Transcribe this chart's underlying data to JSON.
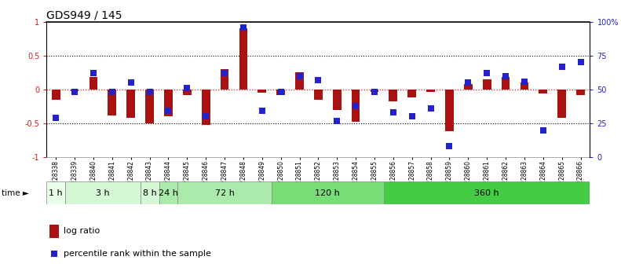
{
  "title": "GDS949 / 145",
  "samples": [
    "GSM228338",
    "GSM228339",
    "GSM228840",
    "GSM228841",
    "GSM228842",
    "GSM228843",
    "GSM228844",
    "GSM228845",
    "GSM228846",
    "GSM228847",
    "GSM228848",
    "GSM228849",
    "GSM228850",
    "GSM228851",
    "GSM228852",
    "GSM228853",
    "GSM228854",
    "GSM228855",
    "GSM228856",
    "GSM228857",
    "GSM228858",
    "GSM228859",
    "GSM228860",
    "GSM228861",
    "GSM228862",
    "GSM228863",
    "GSM228864",
    "GSM228865",
    "GSM228866"
  ],
  "log_ratio": [
    -0.15,
    -0.03,
    0.18,
    -0.38,
    -0.42,
    -0.5,
    -0.4,
    -0.08,
    -0.52,
    0.3,
    0.9,
    -0.05,
    -0.08,
    0.25,
    -0.15,
    -0.3,
    -0.48,
    -0.04,
    -0.18,
    -0.12,
    -0.04,
    -0.62,
    0.08,
    0.15,
    0.18,
    0.1,
    -0.06,
    -0.42,
    -0.08
  ],
  "percentile": [
    29,
    48,
    62,
    48,
    55,
    48,
    34,
    51,
    30,
    62,
    96,
    34,
    48,
    60,
    57,
    27,
    38,
    48,
    33,
    30,
    36,
    8,
    55,
    62,
    60,
    56,
    20,
    67,
    70
  ],
  "time_groups": [
    {
      "label": "1 h",
      "start": 0,
      "end": 1,
      "color": "#e8ffe8"
    },
    {
      "label": "3 h",
      "start": 1,
      "end": 5,
      "color": "#d4f7d4"
    },
    {
      "label": "8 h",
      "start": 5,
      "end": 6,
      "color": "#d4f7d4"
    },
    {
      "label": "24 h",
      "start": 6,
      "end": 7,
      "color": "#aaeaaa"
    },
    {
      "label": "72 h",
      "start": 7,
      "end": 12,
      "color": "#aaeaaa"
    },
    {
      "label": "120 h",
      "start": 12,
      "end": 18,
      "color": "#77dd77"
    },
    {
      "label": "360 h",
      "start": 18,
      "end": 29,
      "color": "#44cc44"
    }
  ],
  "bar_color": "#aa1111",
  "dot_color": "#2222cc",
  "title_fontsize": 10
}
